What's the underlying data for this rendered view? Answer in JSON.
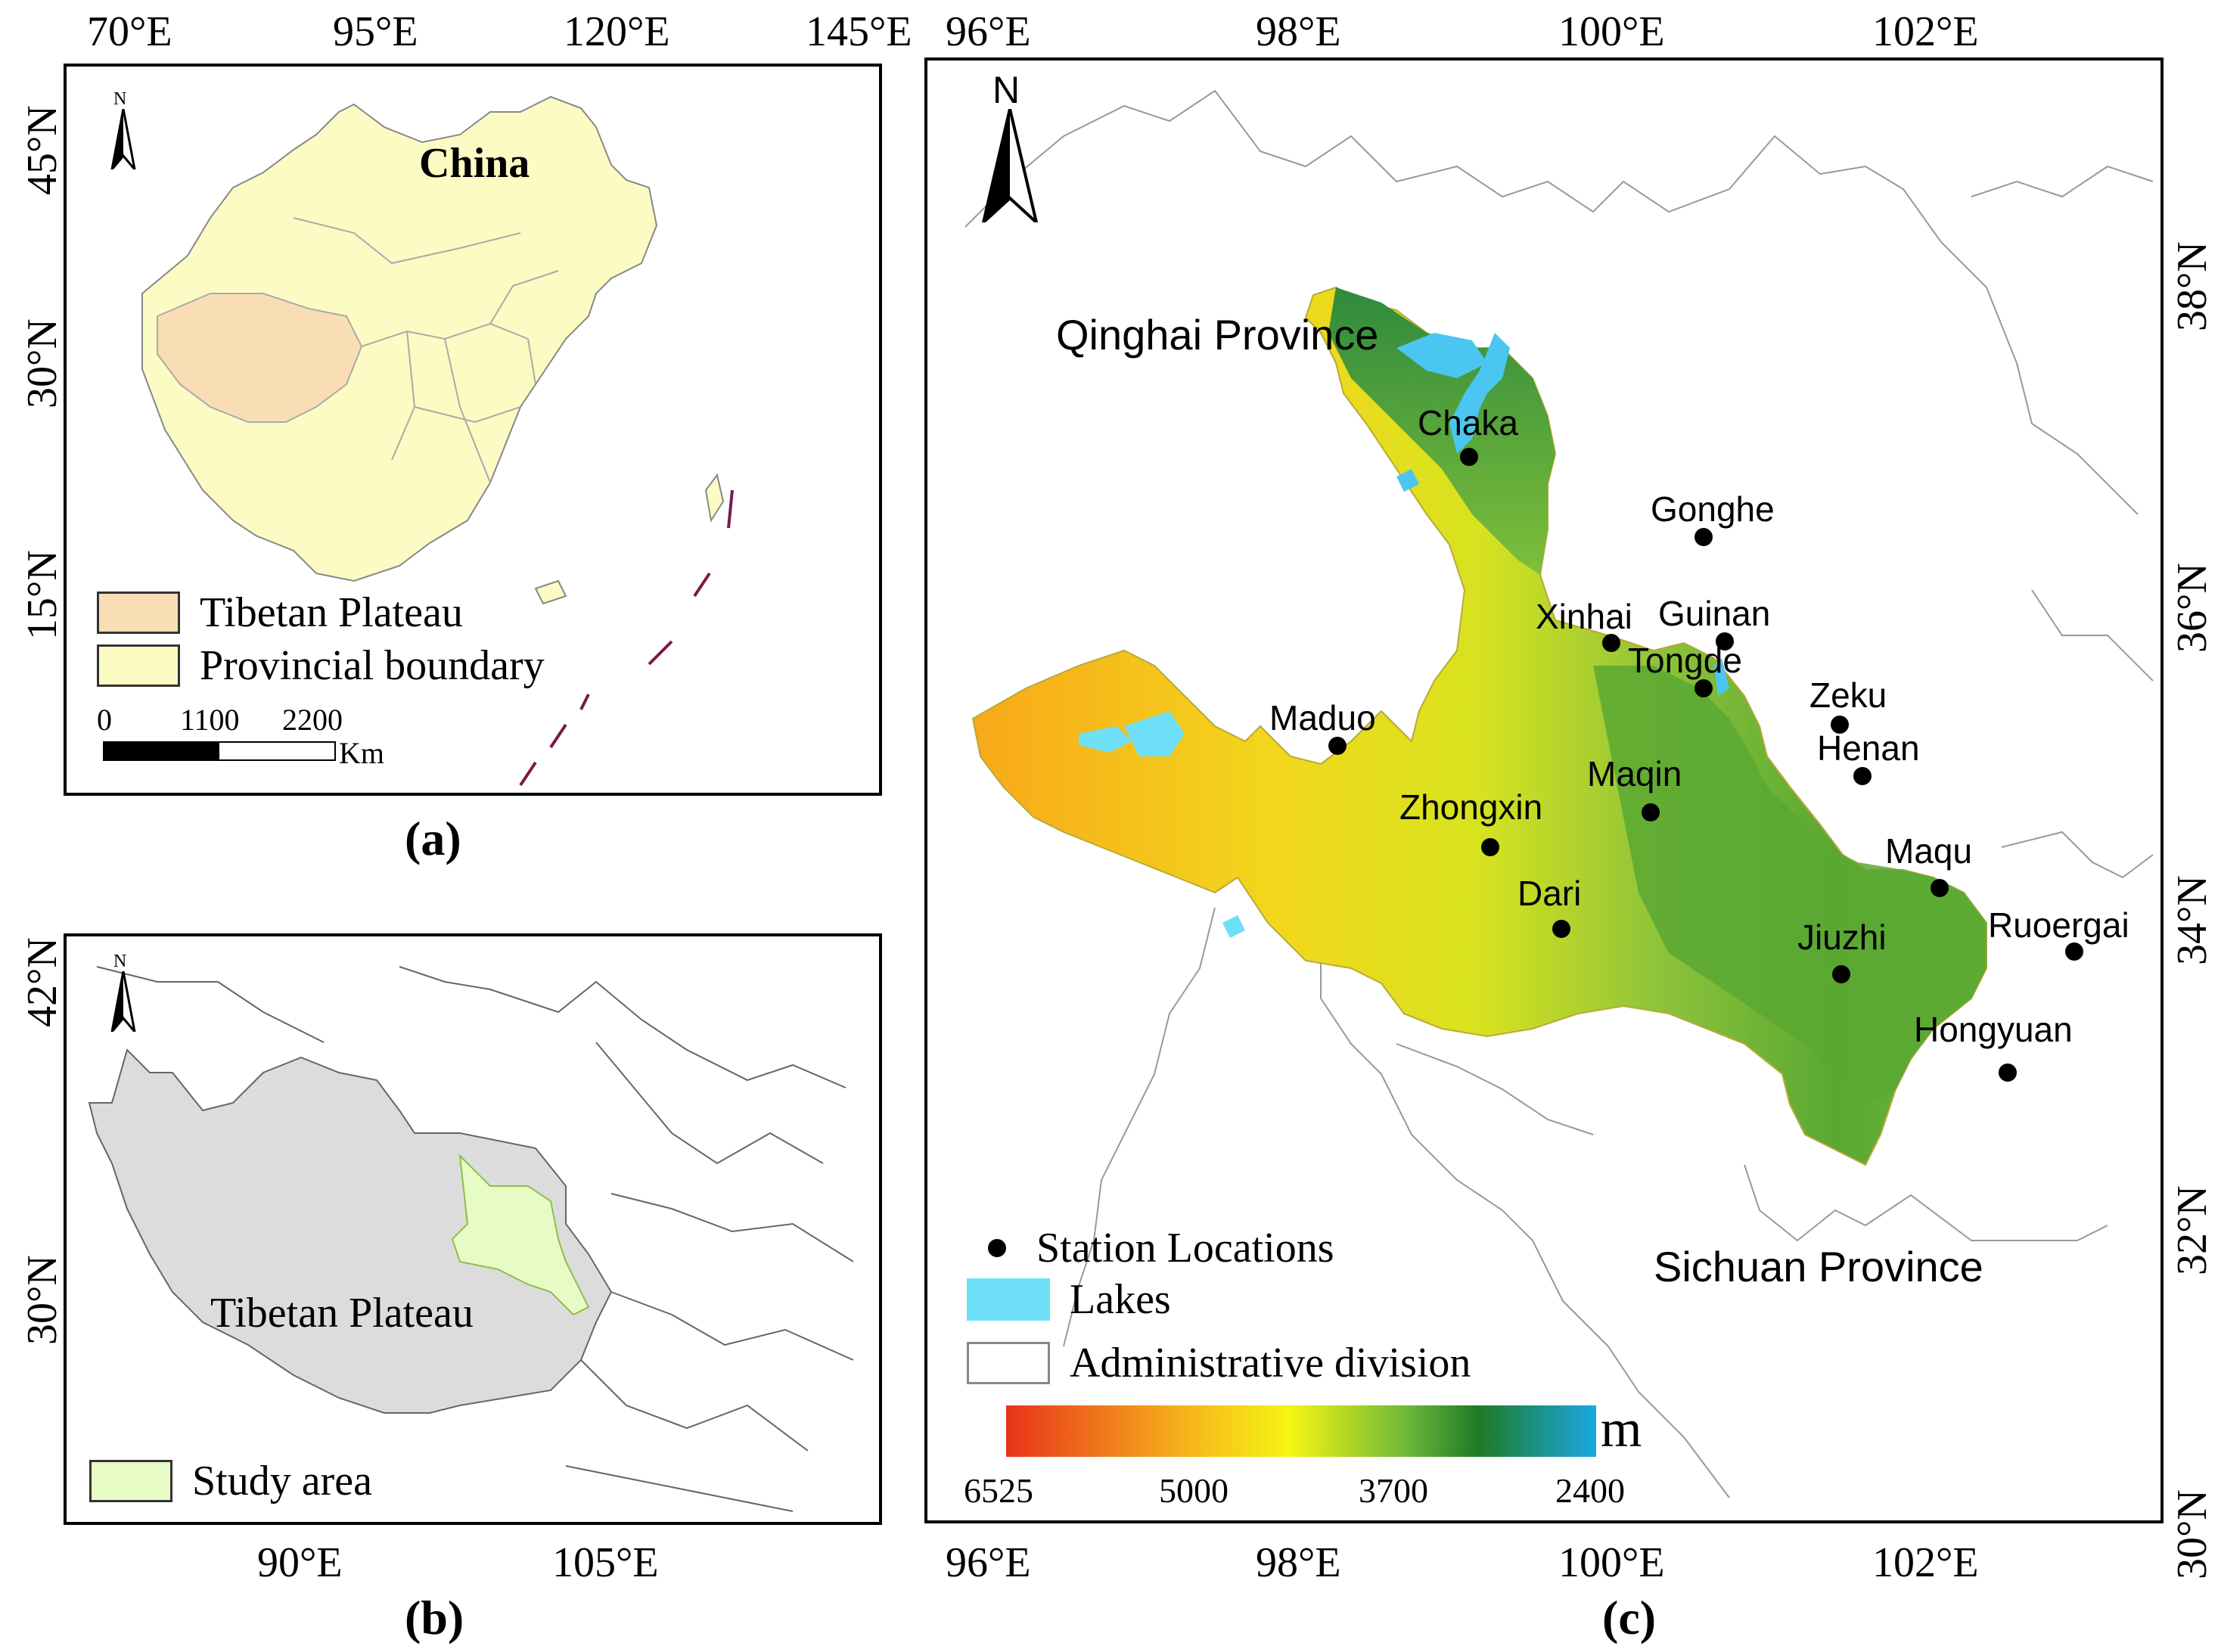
{
  "panel_a": {
    "lon_ticks": [
      "70°E",
      "95°E",
      "120°E",
      "145°E"
    ],
    "lat_ticks": [
      "45°N",
      "30°N",
      "15°N"
    ],
    "title": "China",
    "north": "N",
    "legend": [
      {
        "label": "Tibetan Plateau",
        "color": "#f9deb5"
      },
      {
        "label": "Provincial boundary",
        "color": "#fdfbc4"
      }
    ],
    "scale": {
      "labels": [
        "0",
        "1100",
        "2200"
      ],
      "unit": "Km"
    },
    "caption": "(a)"
  },
  "panel_b": {
    "lat_ticks": [
      "42°N",
      "30°N"
    ],
    "lon_ticks": [
      "90°E",
      "105°E"
    ],
    "north": "N",
    "region_label": "Tibetan Plateau",
    "legend": [
      {
        "label": "Study area",
        "color": "#e7fbc6"
      }
    ],
    "caption": "(b)"
  },
  "panel_c": {
    "lon_ticks": [
      "96°E",
      "98°E",
      "100°E",
      "102°E"
    ],
    "lat_ticks": [
      "38°N",
      "36°N",
      "34°N",
      "32°N",
      "30°N"
    ],
    "north": "N",
    "provinces": [
      "Qinghai Province",
      "Sichuan Province"
    ],
    "stations": [
      "Chaka",
      "Gonghe",
      "Xinhai",
      "Guinan",
      "Tongde",
      "Zeku",
      "Henan",
      "Maduo",
      "Maqin",
      "Zhongxin",
      "Maqu",
      "Dari",
      "Ruoergai",
      "Jiuzhi",
      "Hongyuan"
    ],
    "legend": [
      {
        "label": "Station Locations"
      },
      {
        "label": "Lakes",
        "color": "#6ee0f7"
      },
      {
        "label": "Administrative division"
      }
    ],
    "elevation": {
      "unit": "m",
      "labels": [
        "6525",
        "5000",
        "3700",
        "2400"
      ]
    },
    "caption": "(c)"
  }
}
